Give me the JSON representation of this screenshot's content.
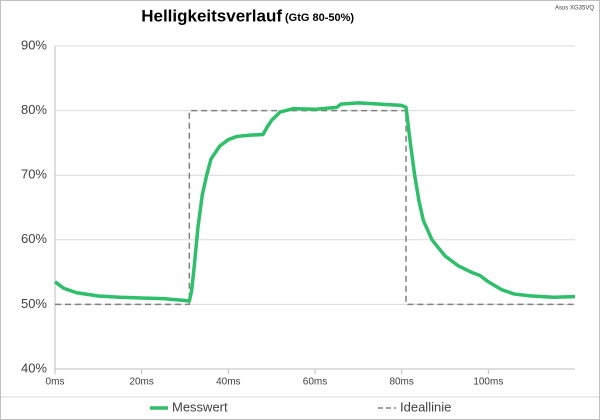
{
  "chart_data": {
    "type": "line",
    "title": "Helligkeitsverlauf",
    "subtitle": "(GtG 80-50%)",
    "annotation": "Asus XG35VQ",
    "xlim": [
      0,
      120
    ],
    "ylim": [
      40,
      90
    ],
    "xticks": [
      {
        "value": 0,
        "label": "0ms"
      },
      {
        "value": 20,
        "label": "20ms"
      },
      {
        "value": 40,
        "label": "40ms"
      },
      {
        "value": 60,
        "label": "60ms"
      },
      {
        "value": 80,
        "label": "80ms"
      },
      {
        "value": 100,
        "label": "100ms"
      }
    ],
    "yticks": [
      {
        "value": 40,
        "label": "40%"
      },
      {
        "value": 50,
        "label": "50%"
      },
      {
        "value": 60,
        "label": "60%"
      },
      {
        "value": 70,
        "label": "70%"
      },
      {
        "value": 80,
        "label": "80%"
      },
      {
        "value": 90,
        "label": "90%"
      }
    ],
    "grid": true,
    "legend": "bottom",
    "series": [
      {
        "name": "Messwert",
        "color": "#2fbf6a",
        "dash": false,
        "x": [
          0,
          2,
          5,
          10,
          15,
          20,
          25,
          30,
          31,
          31.5,
          32,
          33,
          34,
          35,
          36,
          38,
          40,
          42,
          45,
          48,
          49,
          50,
          52,
          55,
          60,
          65,
          66,
          70,
          75,
          80,
          81,
          82,
          83,
          84,
          85,
          87,
          90,
          93,
          96,
          98,
          100,
          103,
          106,
          110,
          115,
          120
        ],
        "values": [
          53.5,
          52.5,
          51.8,
          51.3,
          51.1,
          51,
          50.9,
          50.6,
          50.5,
          52,
          55,
          62,
          67,
          70,
          72.5,
          74.5,
          75.5,
          76,
          76.2,
          76.3,
          77.5,
          78.5,
          79.8,
          80.3,
          80.2,
          80.5,
          81,
          81.2,
          81,
          80.8,
          80.5,
          75,
          70,
          66,
          63,
          60,
          57.5,
          56,
          55,
          54.5,
          53.5,
          52.3,
          51.6,
          51.3,
          51.1,
          51.2
        ]
      },
      {
        "name": "Ideallinie",
        "color": "#808080",
        "dash": true,
        "x": [
          0,
          31,
          31,
          81,
          81,
          120
        ],
        "values": [
          50,
          50,
          80,
          80,
          50,
          50
        ]
      }
    ]
  }
}
